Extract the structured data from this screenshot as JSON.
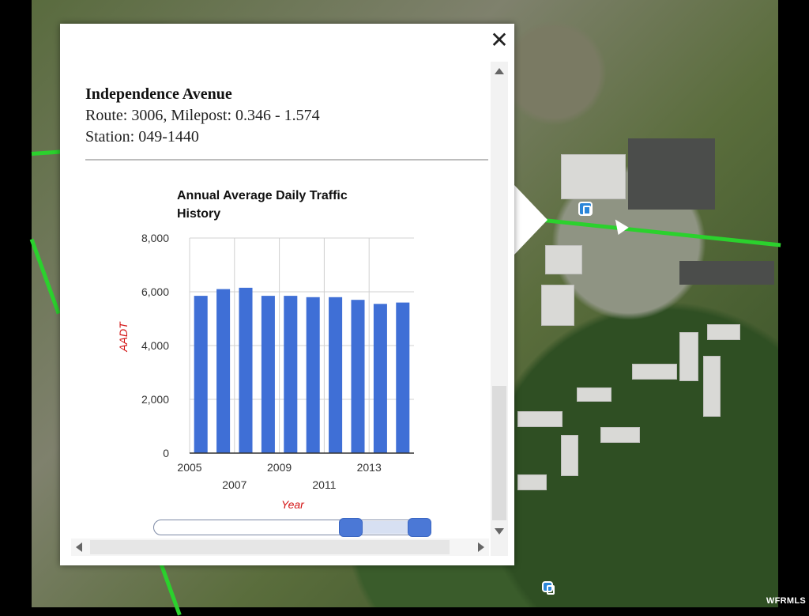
{
  "map": {
    "watermark": "WFRMLS",
    "route_color": "#2bd12d"
  },
  "popup": {
    "close_label": "✕",
    "street_name": "Independence Avenue",
    "route_info": "Route: 3006, Milepost: 0.346 - 1.574",
    "station_info": "Station: 049-1440"
  },
  "chart_data": {
    "type": "bar",
    "title_line1": "Annual Average Daily Traffic",
    "title_line2": "History",
    "ylabel": "AADT",
    "xlabel": "Year",
    "ylim": [
      0,
      8000
    ],
    "yticks": [
      "0",
      "2,000",
      "4,000",
      "6,000",
      "8,000"
    ],
    "ytick_values": [
      0,
      2000,
      4000,
      6000,
      8000
    ],
    "categories": [
      "2005",
      "2006",
      "2007",
      "2008",
      "2009",
      "2010",
      "2011",
      "2012",
      "2013",
      "2014"
    ],
    "xticks_top": [
      "2005",
      "2009",
      "2013"
    ],
    "xticks_bottom": [
      "2007",
      "2011"
    ],
    "values": [
      5850,
      6100,
      6150,
      5850,
      5850,
      5800,
      5800,
      5700,
      5550,
      5600
    ],
    "bar_color": "#3f6fd6",
    "grid": true
  },
  "slider": {
    "range_start": 0.67,
    "range_end": 0.95
  }
}
